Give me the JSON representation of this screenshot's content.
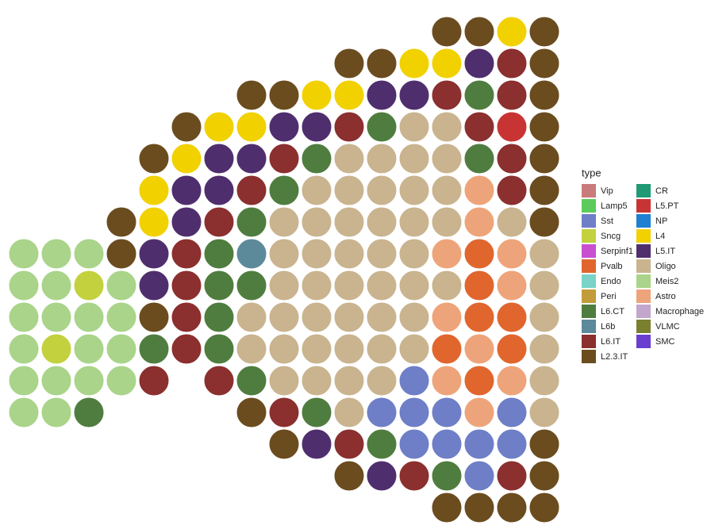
{
  "chart_data": {
    "type": "scatterpie",
    "legend_title": "type",
    "series": [
      {
        "name": "Vip",
        "color": "#c97b7b"
      },
      {
        "name": "Lamp5",
        "color": "#5ccb5c"
      },
      {
        "name": "Sst",
        "color": "#6e7ec7"
      },
      {
        "name": "Sncg",
        "color": "#c3d13e"
      },
      {
        "name": "Serpinf1",
        "color": "#c84fd0"
      },
      {
        "name": "Pvalb",
        "color": "#e0662e"
      },
      {
        "name": "Endo",
        "color": "#79d3c7"
      },
      {
        "name": "Peri",
        "color": "#c29c3a"
      },
      {
        "name": "L6.CT",
        "color": "#4f7d3f"
      },
      {
        "name": "L6b",
        "color": "#5c8a9a"
      },
      {
        "name": "L6.IT",
        "color": "#8b2f2f"
      },
      {
        "name": "L2.3.IT",
        "color": "#6b4c1f"
      },
      {
        "name": "CR",
        "color": "#1f9a74"
      },
      {
        "name": "L5.PT",
        "color": "#c83434"
      },
      {
        "name": "NP",
        "color": "#1f7fd1"
      },
      {
        "name": "L4",
        "color": "#f2d100"
      },
      {
        "name": "L5.IT",
        "color": "#4f2e6e"
      },
      {
        "name": "Oligo",
        "color": "#c9b48f"
      },
      {
        "name": "Meis2",
        "color": "#a9d48a"
      },
      {
        "name": "Astro",
        "color": "#eea47a"
      },
      {
        "name": "Macrophage",
        "color": "#c3a6cc"
      },
      {
        "name": "VLMC",
        "color": "#7a8030"
      },
      {
        "name": "SMC",
        "color": "#6a3fd0"
      }
    ],
    "spots": [
      {
        "y": 0,
        "x": [
          13,
          14,
          15,
          16
        ],
        "type": [
          "L2.3.IT",
          "L2.3.IT",
          "L4",
          "L2.3.IT"
        ]
      },
      {
        "y": 1,
        "x": [
          10,
          11,
          12,
          13,
          14,
          15,
          16
        ],
        "type": [
          "L2.3.IT",
          "L2.3.IT",
          "L4",
          "L4",
          "L5.IT",
          "L6.IT",
          "L2.3.IT"
        ]
      },
      {
        "y": 2,
        "x": [
          7,
          8,
          9,
          10,
          11,
          12,
          13,
          14,
          15,
          16
        ],
        "type": [
          "L2.3.IT",
          "L2.3.IT",
          "L4",
          "L4",
          "L5.IT",
          "L5.IT",
          "L6.IT",
          "L6.CT",
          "L6.IT",
          "L2.3.IT"
        ]
      },
      {
        "y": 3,
        "x": [
          5,
          6,
          7,
          8,
          9,
          10,
          11,
          12,
          13,
          14,
          15,
          16
        ],
        "type": [
          "L2.3.IT",
          "L4",
          "L4",
          "L5.IT",
          "L5.IT",
          "L6.IT",
          "L6.CT",
          "Oligo",
          "Oligo",
          "L6.IT",
          "L5.PT",
          "L2.3.IT"
        ]
      },
      {
        "y": 4,
        "x": [
          4,
          5,
          6,
          7,
          8,
          9,
          10,
          11,
          12,
          13,
          14,
          15,
          16
        ],
        "type": [
          "L2.3.IT",
          "L4",
          "L5.IT",
          "L5.IT",
          "L6.IT",
          "L6.CT",
          "Oligo",
          "Oligo",
          "Oligo",
          "Oligo",
          "L6.CT",
          "L6.IT",
          "L2.3.IT"
        ]
      },
      {
        "y": 5,
        "x": [
          4,
          5,
          6,
          7,
          8,
          9,
          10,
          11,
          12,
          13,
          14,
          15,
          16
        ],
        "type": [
          "L4",
          "L5.IT",
          "L5.IT",
          "L6.IT",
          "L6.CT",
          "Oligo",
          "Oligo",
          "Oligo",
          "Oligo",
          "Oligo",
          "Astro",
          "L6.IT",
          "L2.3.IT"
        ]
      },
      {
        "y": 6,
        "x": [
          3,
          4,
          5,
          6,
          7,
          8,
          9,
          10,
          11,
          12,
          13,
          14,
          15,
          16
        ],
        "type": [
          "L2.3.IT",
          "L4",
          "L5.IT",
          "L6.IT",
          "L6.CT",
          "Oligo",
          "Oligo",
          "Oligo",
          "Oligo",
          "Oligo",
          "Oligo",
          "Astro",
          "Oligo",
          "L2.3.IT"
        ]
      },
      {
        "y": 7,
        "x": [
          0,
          1,
          2,
          3,
          4,
          5,
          6,
          7,
          8,
          9,
          10,
          11,
          12,
          13,
          14,
          15,
          16
        ],
        "type": [
          "Meis2",
          "Meis2",
          "Meis2",
          "L2.3.IT",
          "L5.IT",
          "L6.IT",
          "L6.CT",
          "L6b",
          "Oligo",
          "Oligo",
          "Oligo",
          "Oligo",
          "Oligo",
          "Astro",
          "Pvalb",
          "Astro",
          "Oligo"
        ]
      },
      {
        "y": 8,
        "x": [
          0,
          1,
          2,
          3,
          4,
          5,
          6,
          7,
          8,
          9,
          10,
          11,
          12,
          13,
          14,
          15,
          16
        ],
        "type": [
          "Meis2",
          "Meis2",
          "Sncg",
          "Meis2",
          "L5.IT",
          "L6.IT",
          "L6.CT",
          "L6.CT",
          "Oligo",
          "Oligo",
          "Oligo",
          "Oligo",
          "Oligo",
          "Oligo",
          "Pvalb",
          "Astro",
          "Oligo"
        ]
      },
      {
        "y": 9,
        "x": [
          0,
          1,
          2,
          3,
          4,
          5,
          6,
          7,
          8,
          9,
          10,
          11,
          12,
          13,
          14,
          15,
          16
        ],
        "type": [
          "Meis2",
          "Meis2",
          "Meis2",
          "Meis2",
          "L2.3.IT",
          "L6.IT",
          "L6.CT",
          "Oligo",
          "Oligo",
          "Oligo",
          "Oligo",
          "Oligo",
          "Oligo",
          "Astro",
          "Pvalb",
          "Pvalb",
          "Oligo"
        ]
      },
      {
        "y": 10,
        "x": [
          0,
          1,
          2,
          3,
          4,
          5,
          6,
          7,
          8,
          9,
          10,
          11,
          12,
          13,
          14,
          15,
          16
        ],
        "type": [
          "Meis2",
          "Sncg",
          "Meis2",
          "Meis2",
          "L6.CT",
          "L6.IT",
          "L6.CT",
          "Oligo",
          "Oligo",
          "Oligo",
          "Oligo",
          "Oligo",
          "Oligo",
          "Pvalb",
          "Astro",
          "Pvalb",
          "Oligo"
        ]
      },
      {
        "y": 11,
        "x": [
          0,
          1,
          2,
          3,
          4,
          6,
          7,
          8,
          9,
          10,
          11,
          12,
          13,
          14,
          15,
          16
        ],
        "type": [
          "Meis2",
          "Meis2",
          "Meis2",
          "Meis2",
          "L6.IT",
          "L6.IT",
          "L6.CT",
          "Oligo",
          "Oligo",
          "Oligo",
          "Oligo",
          "Sst",
          "Astro",
          "Pvalb",
          "Astro",
          "Oligo"
        ]
      },
      {
        "y": 12,
        "x": [
          0,
          1,
          2,
          7,
          8,
          9,
          10,
          11,
          12,
          13,
          14,
          15,
          16
        ],
        "type": [
          "Meis2",
          "Meis2",
          "L6.CT",
          "L2.3.IT",
          "L6.IT",
          "L6.CT",
          "Oligo",
          "Sst",
          "Sst",
          "Sst",
          "Astro",
          "Sst",
          "Oligo"
        ]
      },
      {
        "y": 13,
        "x": [
          8,
          9,
          10,
          11,
          12,
          13,
          14,
          15,
          16
        ],
        "type": [
          "L2.3.IT",
          "L5.IT",
          "L6.IT",
          "L6.CT",
          "Sst",
          "Sst",
          "Sst",
          "Sst",
          "L2.3.IT"
        ]
      },
      {
        "y": 14,
        "x": [
          10,
          11,
          12,
          13,
          14,
          15,
          16
        ],
        "type": [
          "L2.3.IT",
          "L5.IT",
          "L6.IT",
          "L6.CT",
          "Sst",
          "L6.IT",
          "L2.3.IT"
        ]
      },
      {
        "y": 15,
        "x": [
          13,
          14,
          15,
          16
        ],
        "type": [
          "L2.3.IT",
          "L2.3.IT",
          "L2.3.IT",
          "L2.3.IT"
        ]
      }
    ]
  }
}
